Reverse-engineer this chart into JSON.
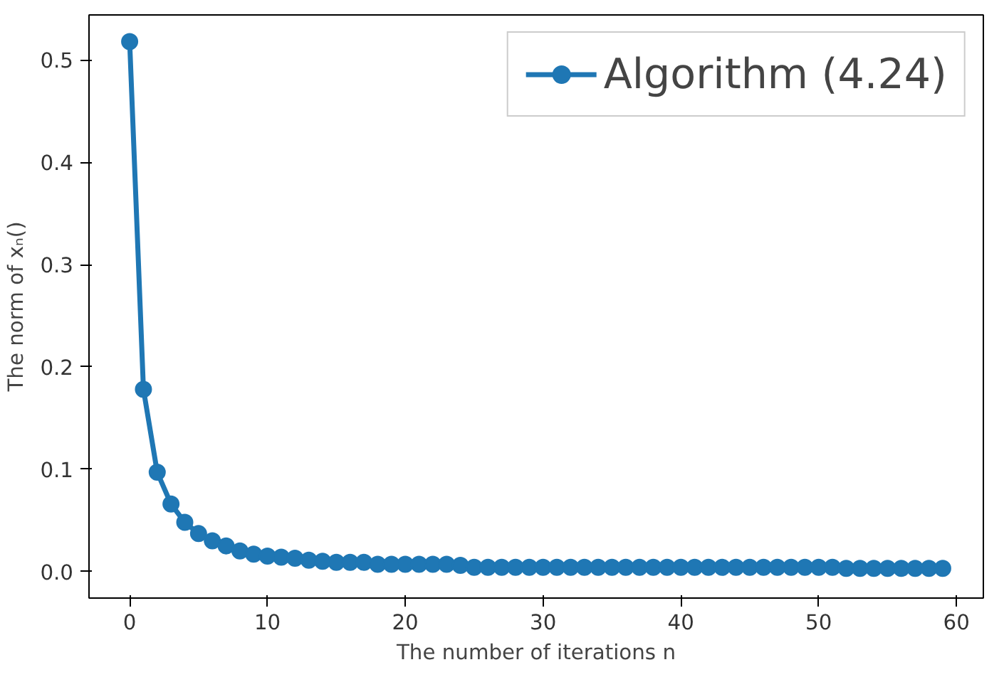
{
  "chart_data": {
    "type": "line",
    "xlabel": "The number of iterations n",
    "ylabel": "The norm of xₙ()",
    "x": [
      0,
      1,
      2,
      3,
      4,
      5,
      6,
      7,
      8,
      9,
      10,
      11,
      12,
      13,
      14,
      15,
      16,
      17,
      18,
      19,
      20,
      21,
      22,
      23,
      24,
      25,
      26,
      27,
      28,
      29,
      30,
      31,
      32,
      33,
      34,
      35,
      36,
      37,
      38,
      39,
      40,
      41,
      42,
      43,
      44,
      45,
      46,
      47,
      48,
      49,
      50,
      51,
      52,
      53,
      54,
      55,
      56,
      57,
      58,
      59
    ],
    "series": [
      {
        "name": "Algorithm (4.24)",
        "color": "#1f77b4",
        "values": [
          0.518,
          0.178,
          0.097,
          0.066,
          0.048,
          0.037,
          0.03,
          0.025,
          0.02,
          0.017,
          0.015,
          0.014,
          0.013,
          0.011,
          0.01,
          0.009,
          0.009,
          0.009,
          0.007,
          0.007,
          0.007,
          0.007,
          0.007,
          0.007,
          0.006,
          0.004,
          0.004,
          0.004,
          0.004,
          0.004,
          0.004,
          0.004,
          0.004,
          0.004,
          0.004,
          0.004,
          0.004,
          0.004,
          0.004,
          0.004,
          0.004,
          0.004,
          0.004,
          0.004,
          0.004,
          0.004,
          0.004,
          0.004,
          0.004,
          0.004,
          0.004,
          0.004,
          0.003,
          0.003,
          0.003,
          0.003,
          0.003,
          0.003,
          0.003,
          0.003
        ]
      }
    ],
    "xlim": [
      -2.95,
      61.95
    ],
    "ylim": [
      -0.026,
      0.544
    ],
    "xticks": [
      0,
      10,
      20,
      30,
      40,
      50,
      60
    ],
    "yticks": [
      {
        "value": 0,
        "label": "0.0"
      },
      0.1,
      0.2,
      0.3,
      0.4,
      0.5
    ],
    "grid": false,
    "legend": "top right",
    "marker": "circle",
    "line_style": "solid"
  }
}
